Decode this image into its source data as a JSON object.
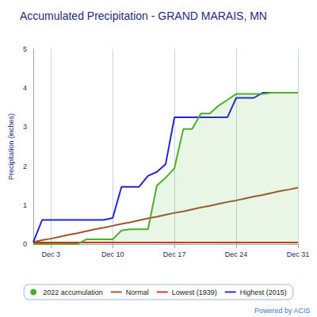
{
  "chart_data": {
    "type": "line",
    "title": "Accumulated Precipitation - GRAND MARAIS, MN",
    "y_label": "Precipitation (inches)",
    "annotations": [
      "Powered by ACIS"
    ],
    "categories": [
      null,
      null,
      "Dec 3",
      null,
      null,
      null,
      null,
      null,
      null,
      "Dec 10",
      null,
      null,
      null,
      null,
      null,
      null,
      "Dec 17",
      null,
      null,
      null,
      null,
      null,
      null,
      "Dec 24",
      null,
      null,
      null,
      null,
      null,
      null,
      "Dec 31"
    ],
    "series": [
      {
        "name": "2022 accumulation",
        "color": "#4cae2c",
        "type": "area",
        "marker": "circle",
        "values": [
          0,
          0,
          0,
          0,
          0,
          0,
          0.12,
          0.12,
          0.12,
          0.12,
          0.35,
          0.38,
          0.38,
          0.38,
          1.5,
          1.7,
          1.95,
          2.95,
          2.95,
          3.35,
          3.35,
          3.55,
          3.7,
          3.85,
          3.85,
          3.85,
          3.85,
          3.88,
          3.88,
          3.88,
          3.88
        ]
      },
      {
        "name": "Normal",
        "color": "#a0522d",
        "type": "line",
        "values": [
          0.05,
          0.1,
          0.14,
          0.19,
          0.24,
          0.28,
          0.33,
          0.38,
          0.42,
          0.47,
          0.52,
          0.56,
          0.61,
          0.66,
          0.7,
          0.75,
          0.8,
          0.84,
          0.89,
          0.94,
          0.98,
          1.03,
          1.08,
          1.12,
          1.17,
          1.22,
          1.26,
          1.31,
          1.36,
          1.4,
          1.45
        ]
      },
      {
        "name": "Lowest (1939)",
        "color": "#e3261b",
        "type": "line",
        "values": [
          0.04,
          0.04,
          0.04,
          0.04,
          0.04,
          0.04,
          0.04,
          0.04,
          0.04,
          0.04,
          0.04,
          0.04,
          0.04,
          0.04,
          0.04,
          0.04,
          0.04,
          0.04,
          0.04,
          0.04,
          0.04,
          0.04,
          0.04,
          0.04,
          0.04,
          0.04,
          0.04,
          0.04,
          0.04,
          0.04,
          0.04
        ]
      },
      {
        "name": "Highest (2015)",
        "color": "#2424d6",
        "type": "line",
        "values": [
          0.05,
          0.62,
          0.62,
          0.62,
          0.62,
          0.62,
          0.62,
          0.62,
          0.62,
          0.67,
          1.47,
          1.47,
          1.47,
          1.75,
          1.85,
          2.05,
          3.25,
          3.25,
          3.25,
          3.25,
          3.25,
          3.25,
          3.25,
          3.75,
          3.75,
          3.75,
          3.88,
          3.88,
          3.88,
          3.88,
          3.88
        ]
      }
    ],
    "ylim": [
      0,
      5
    ],
    "yticks": [
      0,
      1,
      2,
      3,
      4,
      5
    ],
    "grid": true,
    "legend": "bottom"
  }
}
